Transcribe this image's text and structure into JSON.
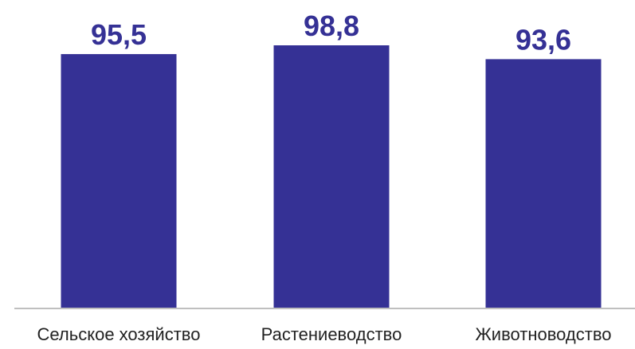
{
  "chart_data": {
    "type": "bar",
    "categories": [
      "Сельское хозяйство",
      "Растениеводство",
      "Животноводство"
    ],
    "values": [
      95.5,
      98.8,
      93.6
    ],
    "value_labels": [
      "95,5",
      "98,8",
      "93,6"
    ],
    "title": "",
    "xlabel": "",
    "ylabel": "",
    "grid": false,
    "legend": "none",
    "colors": {
      "bar": "#353195",
      "label": "#353195",
      "axis": "#bfbfbf",
      "category_text": "#222222"
    }
  }
}
